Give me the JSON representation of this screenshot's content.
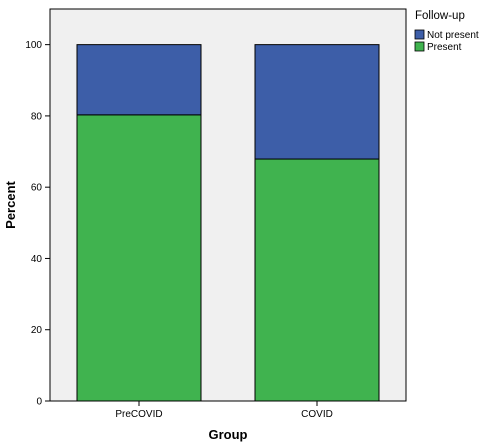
{
  "chart_data": {
    "type": "bar",
    "stacked": true,
    "categories": [
      "PreCOVID",
      "COVID"
    ],
    "series": [
      {
        "name": "Present",
        "values": [
          80.3,
          67.9
        ],
        "color": "#40b34f"
      },
      {
        "name": "Not present",
        "values": [
          19.7,
          32.1
        ],
        "color": "#3d5ea8"
      }
    ],
    "xlabel": "Group",
    "ylabel": "Percent",
    "ylim": [
      0,
      110
    ],
    "yticks": [
      0,
      20,
      40,
      60,
      80,
      100
    ],
    "grid": false,
    "legend": {
      "title": "Follow-up",
      "placement": "top-right",
      "order": [
        "Not present",
        "Present"
      ]
    },
    "plot_background": "#f0f0f0"
  }
}
